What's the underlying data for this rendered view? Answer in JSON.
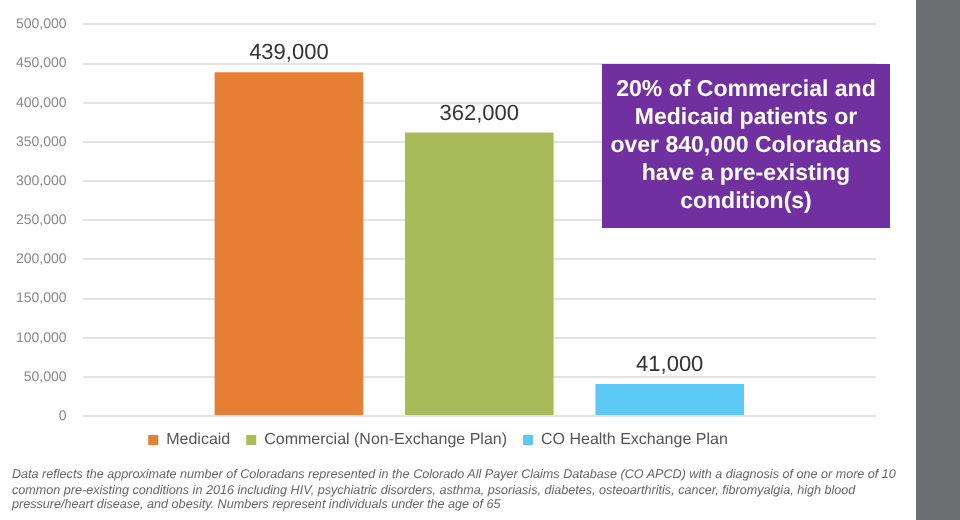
{
  "chart_data": {
    "type": "bar",
    "categories": [
      null
    ],
    "series": [
      {
        "name": "Medicaid",
        "color": "#e67e33",
        "values": [
          439000
        ],
        "value_labels": [
          "439,000"
        ]
      },
      {
        "name": "Commercial (Non-Exchange Plan)",
        "color": "#a9ba58",
        "values": [
          362000
        ],
        "value_labels": [
          "362,000"
        ]
      },
      {
        "name": "CO Health Exchange Plan",
        "color": "#5bc8f5",
        "values": [
          41000
        ],
        "value_labels": [
          "41,000"
        ]
      }
    ],
    "ylim": [
      0,
      500000
    ],
    "yticks": [
      0,
      {
        "value": 50000,
        "label": "50,000"
      },
      {
        "value": 100000,
        "label": "100,000"
      },
      {
        "value": 150000,
        "label": "150,000"
      },
      {
        "value": 200000,
        "label": "200,000"
      },
      {
        "value": 250000,
        "label": "250,000"
      },
      {
        "value": 300000,
        "label": "300,000"
      },
      {
        "value": 350000,
        "label": "350,000"
      },
      {
        "value": 400000,
        "label": "400,000"
      },
      {
        "value": 450000,
        "label": "450,000"
      },
      {
        "value": 500000,
        "label": "500,000"
      }
    ],
    "grid": "y",
    "legend": "bottom",
    "annotations": [
      "20% of Commercial and Medicaid patients or over 840,000 Coloradans have a pre-existing condition(s)",
      "Data reflects the approximate number of Coloradans represented in the Colorado All Payer Claims Database (CO APCD) with a diagnosis of one or more of 10 common pre-existing conditions in 2016 including HIV, psychiatric disorders, asthma, psoriasis, diabetes, osteoarthritis, cancer, fibromyalgia, high blood pressure/heart disease, and obesity. Numbers represent individuals under the age of 65"
    ]
  }
}
